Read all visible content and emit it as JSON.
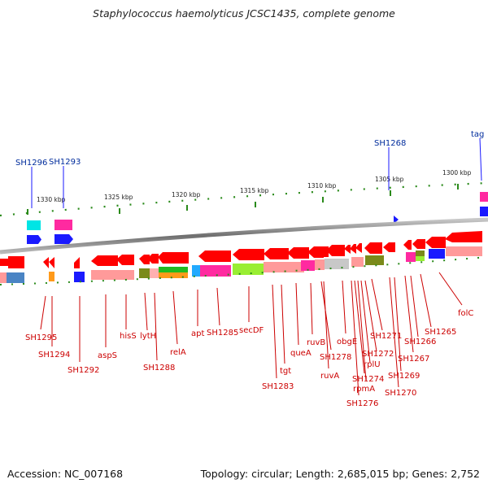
{
  "title": "Staphylococcus haemolyticus JCSC1435, complete genome",
  "footer": {
    "accession": "Accession: NC_007168",
    "summary": "Topology: circular; Length: 2,685,015 bp; Genes: 2,752"
  },
  "colors": {
    "red_label": "#cc0000",
    "blue_label": "#002c9c",
    "gene_red": "#ff0000",
    "backbone": "#8a8a8a",
    "tick_green": "#2a8a1a"
  },
  "scale_labels": [
    "1300 kbp",
    "1305 kbp",
    "1310 kbp",
    "1315 kbp",
    "1320 kbp",
    "1325 kbp",
    "1330 kbp"
  ],
  "top_labels": [
    "tag",
    "SH1268",
    "SH1293",
    "SH1296"
  ],
  "bottom_labels": [
    "SH1295",
    "SH1294",
    "SH1292",
    "aspS",
    "hisS",
    "lytH",
    "SH1288",
    "relA",
    "apt",
    "SH1285",
    "secDF",
    "SH1283",
    "tgt",
    "queA",
    "ruvB",
    "SH1278",
    "ruvA",
    "obgE",
    "SH1276",
    "SH1274",
    "rpmA",
    "rplU",
    "SH1272",
    "SH1271",
    "SH1270",
    "SH1269",
    "SH1267",
    "SH1266",
    "SH1265",
    "folC"
  ]
}
